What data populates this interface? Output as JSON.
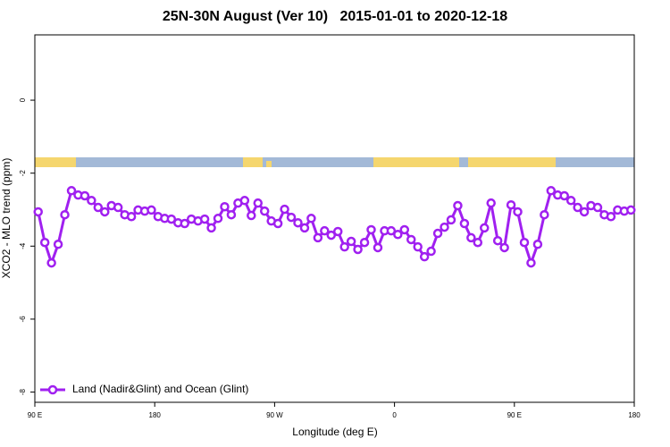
{
  "chart_data": {
    "type": "line",
    "title": "25N-30N August (Ver 10)   2015-01-01 to 2020-12-18",
    "xlabel": "Longitude (deg E)",
    "ylabel": "XCO2 - MLO trend (ppm)",
    "x": [
      92.5,
      97.5,
      102.5,
      107.5,
      112.5,
      117.5,
      122.5,
      127.5,
      132.5,
      137.5,
      142.5,
      147.5,
      152.5,
      157.5,
      162.5,
      167.5,
      172.5,
      177.5,
      182.5,
      187.5,
      192.5,
      197.5,
      202.5,
      207.5,
      212.5,
      217.5,
      222.5,
      227.5,
      232.5,
      237.5,
      242.5,
      247.5,
      252.5,
      257.5,
      262.5,
      267.5,
      272.5,
      277.5,
      282.5,
      287.5,
      292.5,
      297.5,
      302.5,
      307.5,
      312.5,
      317.5,
      322.5,
      327.5,
      332.5,
      337.5,
      342.5,
      347.5,
      352.5,
      357.5,
      362.5,
      367.5,
      372.5,
      377.5,
      382.5,
      387.5,
      392.5,
      397.5,
      402.5,
      407.5,
      412.5,
      417.5,
      422.5,
      427.5,
      432.5,
      437.5,
      442.5,
      447.5,
      452.5,
      457.5,
      462.5,
      467.5,
      472.5,
      477.5,
      482.5,
      487.5,
      492.5,
      497.5,
      502.5,
      507.5,
      512.5,
      517.5,
      522.5,
      527.5,
      532.5,
      537.5
    ],
    "series": [
      {
        "name": "Land (Nadir&Glint) and Ocean (Glint)",
        "color": "#a020f0",
        "values": [
          -3.06,
          -3.9,
          -4.46,
          -3.95,
          -3.14,
          -2.48,
          -2.6,
          -2.62,
          -2.75,
          -2.94,
          -3.06,
          -2.89,
          -2.94,
          -3.14,
          -3.19,
          -3.01,
          -3.04,
          -3.01,
          -3.19,
          -3.24,
          -3.26,
          -3.36,
          -3.38,
          -3.26,
          -3.31,
          -3.26,
          -3.5,
          -3.24,
          -2.92,
          -3.14,
          -2.82,
          -2.75,
          -3.16,
          -2.82,
          -3.04,
          -3.31,
          -3.38,
          -2.99,
          -3.21,
          -3.36,
          -3.5,
          -3.24,
          -3.77,
          -3.58,
          -3.7,
          -3.6,
          -4.02,
          -3.87,
          -4.09,
          -3.9,
          -3.55,
          -4.04,
          -3.58,
          -3.58,
          -3.68,
          -3.55,
          -3.82,
          -4.02,
          -4.29,
          -4.14,
          -3.65,
          -3.48,
          -3.28,
          -2.89,
          -3.38,
          -3.77,
          -3.9,
          -3.5,
          -2.82,
          -3.85,
          -4.04,
          -2.87,
          -3.06,
          -3.9,
          -4.46,
          -3.95,
          -3.14,
          -2.48,
          -2.6,
          -2.62,
          -2.75,
          -2.94,
          -3.06,
          -2.89,
          -2.94,
          -3.14,
          -3.19,
          -3.01,
          -3.04,
          -3.01
        ]
      }
    ],
    "xlim": [
      90,
      540
    ],
    "xticks": [
      {
        "value": 90,
        "label": "90 E"
      },
      180,
      {
        "value": 270,
        "label": "90 W"
      },
      {
        "value": 360,
        "label": "0"
      },
      {
        "value": 450,
        "label": "90 E"
      },
      {
        "value": 540,
        "label": "180"
      }
    ],
    "ylim": [
      -8.28,
      1.79
    ],
    "yticks": [
      0,
      -2,
      -4,
      -6,
      -8
    ],
    "legend": "bottom-left"
  }
}
